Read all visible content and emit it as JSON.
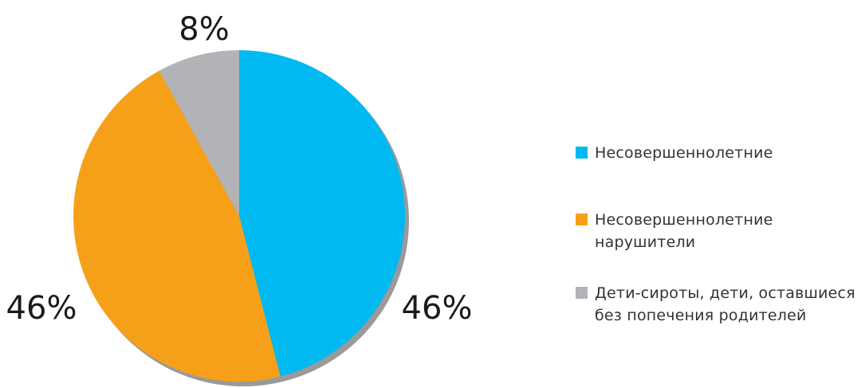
{
  "chart_data": {
    "type": "pie",
    "title": "",
    "start_angle_deg": 0,
    "direction": "clockwise",
    "series": [
      {
        "name": "Несовершеннолетние",
        "value": 46,
        "label": "46%",
        "color": "#00B9F1"
      },
      {
        "name": "Несовершеннолетние нарушители",
        "value": 46,
        "label": "46%",
        "color": "#F6A01A"
      },
      {
        "name": "Дети-сироты, дети, оставшиеся без попечения родителей",
        "value": 8,
        "label": "8%",
        "color": "#B1B3B6"
      }
    ],
    "legend": {
      "position": "right",
      "items": [
        "Несовершеннолетние",
        "Несовершеннолетние\nнарушители",
        "Дети-сироты, дети, оставшиеся\nбез попечения родителей"
      ]
    },
    "shadow_color": "#9A9A9A"
  }
}
